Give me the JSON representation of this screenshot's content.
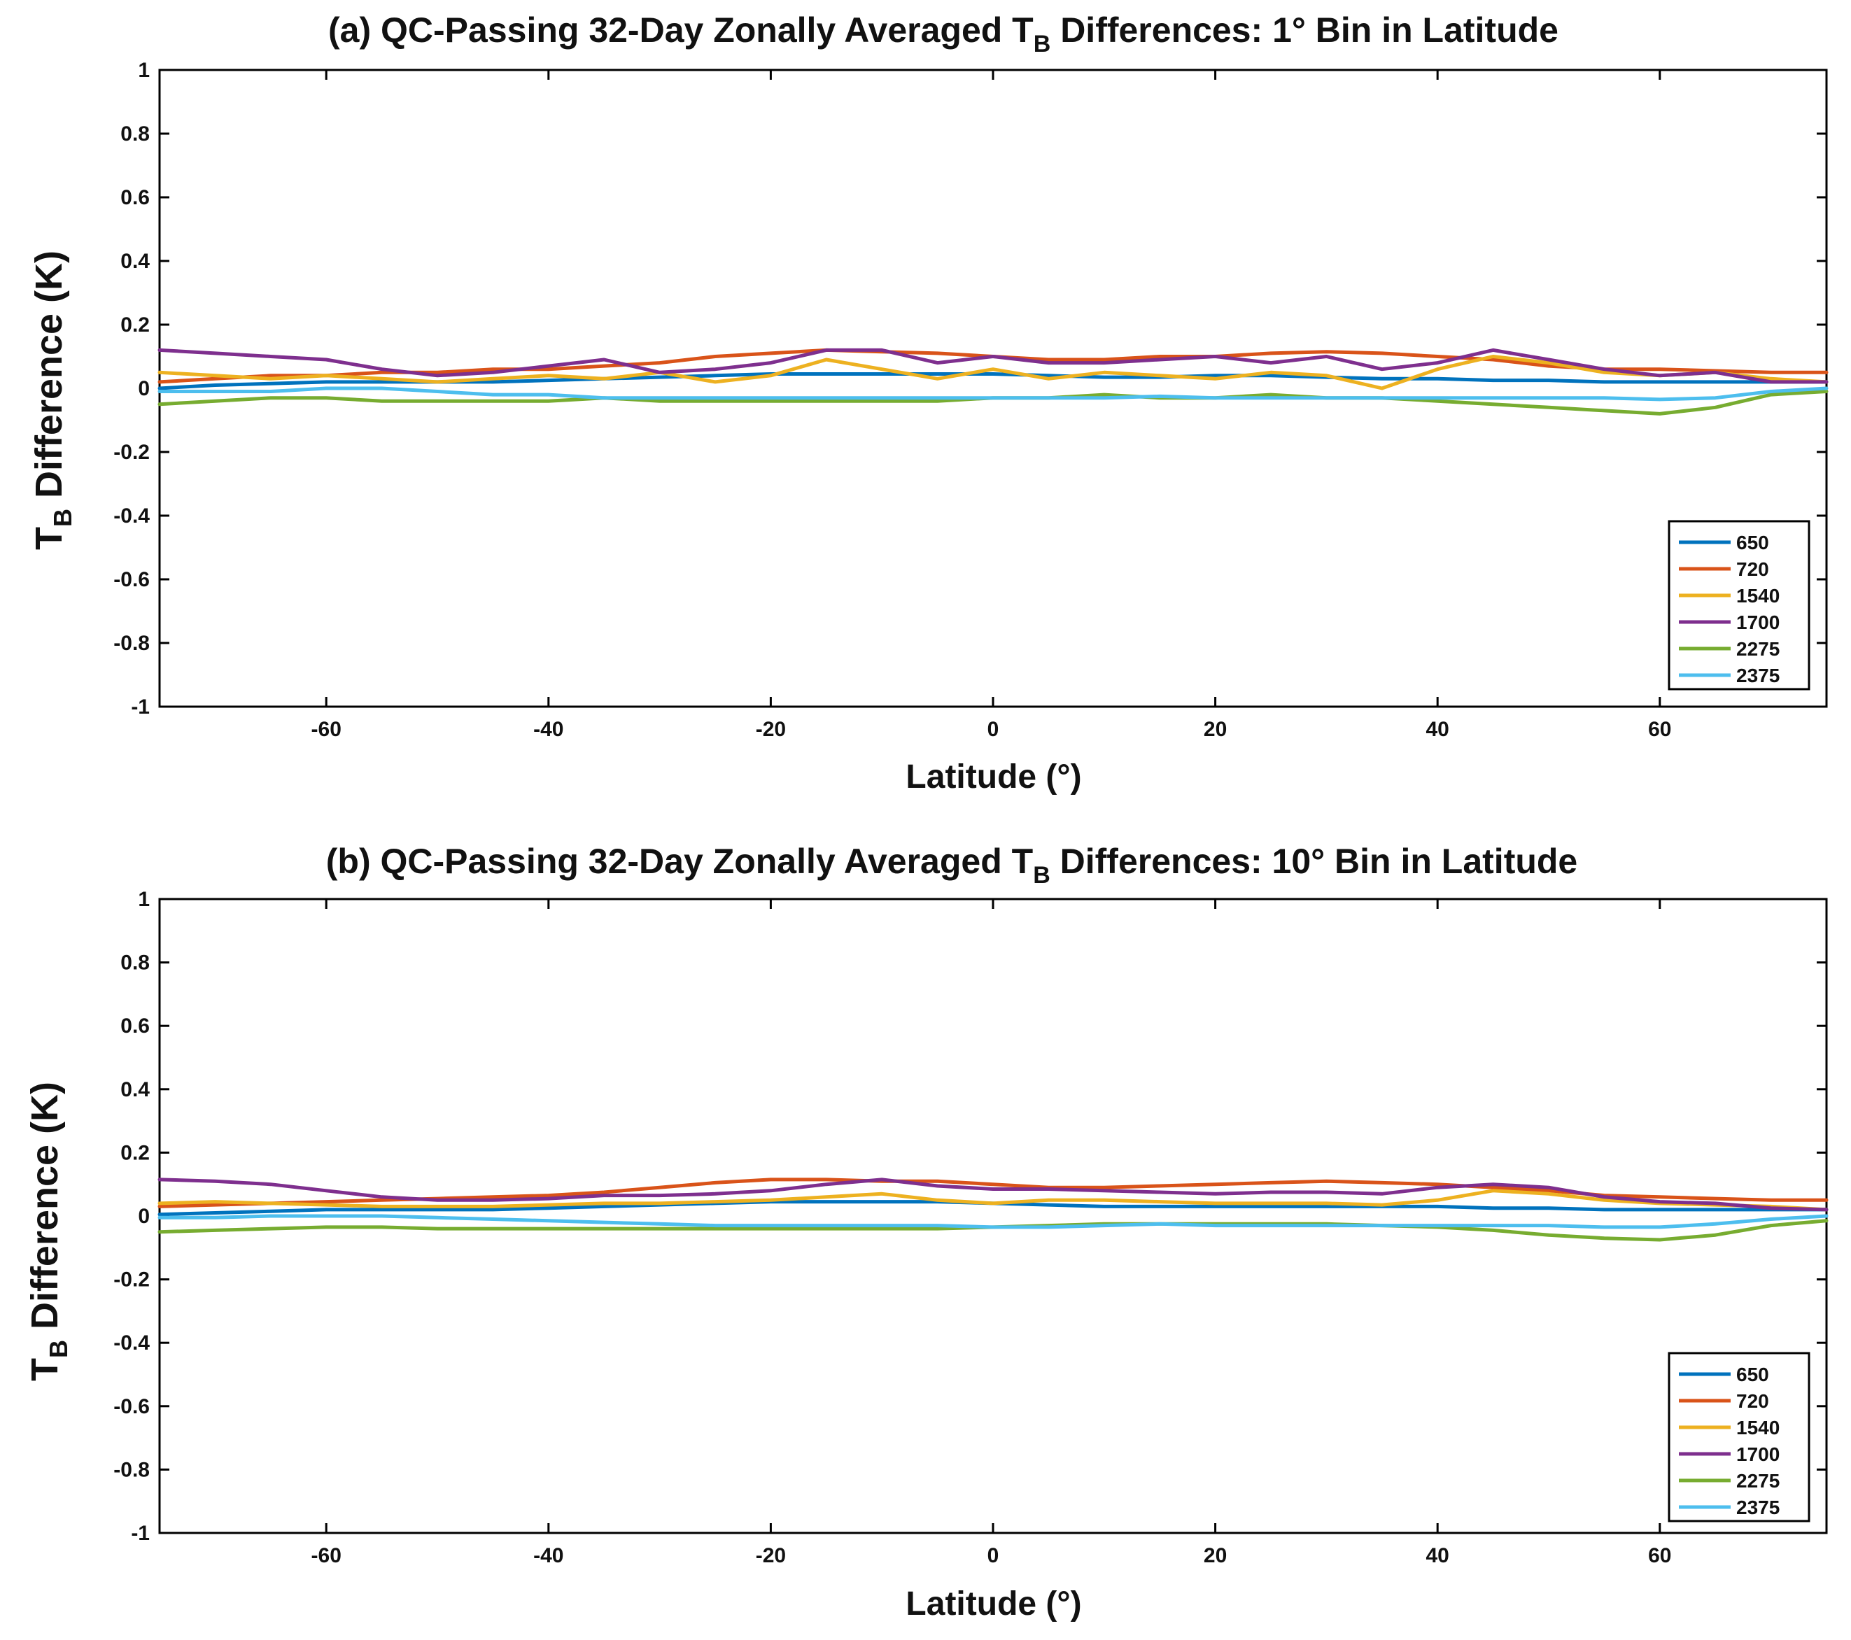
{
  "chart_data": [
    {
      "type": "line",
      "panel": "a",
      "title_main": "(a) QC-Passing 32-Day Zonally Averaged T",
      "title_sub": "B",
      "title_rest": " Differences: 1° Bin in Latitude",
      "ylabel_main": "T",
      "ylabel_sub": "B",
      "ylabel_rest": " Difference (K)",
      "xlabel": "Latitude (°)",
      "xlim": [
        -75,
        75
      ],
      "ylim": [
        -1,
        1
      ],
      "xticks": [
        -60,
        -40,
        -20,
        0,
        20,
        40,
        60
      ],
      "xtick_labels": [
        "-60",
        "-40",
        "-20",
        "0",
        "20",
        "40",
        "60"
      ],
      "yticks": [
        1,
        0.8,
        0.6,
        0.4,
        0.2,
        0,
        -0.2,
        -0.4,
        -0.6,
        -0.8,
        -1
      ],
      "ytick_labels": [
        "1",
        "0.8",
        "0.6",
        "0.4",
        "0.2",
        "0",
        "-0.2",
        "-0.4",
        "-0.6",
        "-0.8",
        "-1"
      ],
      "legend_position": "lower-right",
      "x": [
        -75,
        -70,
        -65,
        -60,
        -55,
        -50,
        -45,
        -40,
        -35,
        -30,
        -25,
        -20,
        -15,
        -10,
        -5,
        0,
        5,
        10,
        15,
        20,
        25,
        30,
        35,
        40,
        45,
        50,
        55,
        60,
        65,
        70,
        75
      ],
      "series": [
        {
          "name": "650",
          "color": "#0072BD",
          "values": [
            0.0,
            0.01,
            0.015,
            0.02,
            0.02,
            0.02,
            0.02,
            0.025,
            0.03,
            0.035,
            0.04,
            0.045,
            0.045,
            0.045,
            0.045,
            0.045,
            0.04,
            0.035,
            0.035,
            0.04,
            0.04,
            0.035,
            0.03,
            0.03,
            0.025,
            0.025,
            0.02,
            0.02,
            0.02,
            0.02,
            0.02
          ]
        },
        {
          "name": "720",
          "color": "#D95319",
          "values": [
            0.02,
            0.03,
            0.04,
            0.04,
            0.05,
            0.05,
            0.06,
            0.06,
            0.07,
            0.08,
            0.1,
            0.11,
            0.12,
            0.115,
            0.11,
            0.1,
            0.09,
            0.09,
            0.1,
            0.1,
            0.11,
            0.115,
            0.11,
            0.1,
            0.09,
            0.07,
            0.06,
            0.06,
            0.055,
            0.05,
            0.05
          ]
        },
        {
          "name": "1540",
          "color": "#EDB120",
          "values": [
            0.05,
            0.04,
            0.03,
            0.04,
            0.03,
            0.02,
            0.03,
            0.04,
            0.03,
            0.05,
            0.02,
            0.04,
            0.09,
            0.06,
            0.03,
            0.06,
            0.03,
            0.05,
            0.04,
            0.03,
            0.05,
            0.04,
            0.0,
            0.06,
            0.1,
            0.08,
            0.05,
            0.04,
            0.05,
            0.03,
            0.02
          ]
        },
        {
          "name": "1700",
          "color": "#7E2F8E",
          "values": [
            0.12,
            0.11,
            0.1,
            0.09,
            0.06,
            0.04,
            0.05,
            0.07,
            0.09,
            0.05,
            0.06,
            0.08,
            0.12,
            0.12,
            0.08,
            0.1,
            0.08,
            0.08,
            0.09,
            0.1,
            0.08,
            0.1,
            0.06,
            0.08,
            0.12,
            0.09,
            0.06,
            0.04,
            0.05,
            0.02,
            0.02
          ]
        },
        {
          "name": "2275",
          "color": "#77AC30",
          "values": [
            -0.05,
            -0.04,
            -0.03,
            -0.03,
            -0.04,
            -0.04,
            -0.04,
            -0.04,
            -0.03,
            -0.04,
            -0.04,
            -0.04,
            -0.04,
            -0.04,
            -0.04,
            -0.03,
            -0.03,
            -0.02,
            -0.03,
            -0.03,
            -0.02,
            -0.03,
            -0.03,
            -0.04,
            -0.05,
            -0.06,
            -0.07,
            -0.08,
            -0.06,
            -0.02,
            -0.01
          ]
        },
        {
          "name": "2375",
          "color": "#4DBEEE",
          "values": [
            -0.01,
            -0.01,
            -0.01,
            0.0,
            0.0,
            -0.01,
            -0.02,
            -0.02,
            -0.03,
            -0.03,
            -0.03,
            -0.03,
            -0.03,
            -0.03,
            -0.03,
            -0.03,
            -0.03,
            -0.03,
            -0.025,
            -0.03,
            -0.03,
            -0.03,
            -0.03,
            -0.03,
            -0.03,
            -0.03,
            -0.03,
            -0.035,
            -0.03,
            -0.01,
            0.0
          ]
        }
      ]
    },
    {
      "type": "line",
      "panel": "b",
      "title_main": "(b) QC-Passing 32-Day Zonally Averaged T",
      "title_sub": "B",
      "title_rest": " Differences: 10° Bin in Latitude",
      "ylabel_main": "T",
      "ylabel_sub": "B",
      "ylabel_rest": " Difference (K)",
      "xlabel": "Latitude (°)",
      "xlim": [
        -75,
        75
      ],
      "ylim": [
        -1,
        1
      ],
      "xticks": [
        -60,
        -40,
        -20,
        0,
        20,
        40,
        60
      ],
      "xtick_labels": [
        "-60",
        "-40",
        "-20",
        "0",
        "20",
        "40",
        "60"
      ],
      "yticks": [
        1,
        0.8,
        0.6,
        0.4,
        0.2,
        0,
        -0.2,
        -0.4,
        -0.6,
        -0.8,
        -1
      ],
      "ytick_labels": [
        "1",
        "0.8",
        "0.6",
        "0.4",
        "0.2",
        "0",
        "-0.2",
        "-0.4",
        "-0.6",
        "-0.8",
        "-1"
      ],
      "legend_position": "lower-right",
      "x": [
        -75,
        -70,
        -65,
        -60,
        -55,
        -50,
        -45,
        -40,
        -35,
        -30,
        -25,
        -20,
        -15,
        -10,
        -5,
        0,
        5,
        10,
        15,
        20,
        25,
        30,
        35,
        40,
        45,
        50,
        55,
        60,
        65,
        70,
        75
      ],
      "series": [
        {
          "name": "650",
          "color": "#0072BD",
          "values": [
            0.005,
            0.01,
            0.015,
            0.02,
            0.02,
            0.02,
            0.02,
            0.025,
            0.03,
            0.035,
            0.04,
            0.045,
            0.045,
            0.045,
            0.045,
            0.04,
            0.035,
            0.03,
            0.03,
            0.03,
            0.03,
            0.03,
            0.03,
            0.03,
            0.025,
            0.025,
            0.02,
            0.02,
            0.02,
            0.02,
            0.02
          ]
        },
        {
          "name": "720",
          "color": "#D95319",
          "values": [
            0.03,
            0.035,
            0.04,
            0.045,
            0.05,
            0.055,
            0.06,
            0.065,
            0.075,
            0.09,
            0.105,
            0.115,
            0.115,
            0.11,
            0.11,
            0.1,
            0.09,
            0.09,
            0.095,
            0.1,
            0.105,
            0.11,
            0.105,
            0.1,
            0.09,
            0.08,
            0.065,
            0.06,
            0.055,
            0.05,
            0.05
          ]
        },
        {
          "name": "1540",
          "color": "#EDB120",
          "values": [
            0.04,
            0.045,
            0.04,
            0.035,
            0.03,
            0.03,
            0.03,
            0.035,
            0.04,
            0.04,
            0.045,
            0.05,
            0.06,
            0.07,
            0.05,
            0.04,
            0.05,
            0.05,
            0.045,
            0.04,
            0.04,
            0.04,
            0.035,
            0.05,
            0.08,
            0.07,
            0.05,
            0.04,
            0.035,
            0.03,
            0.02
          ]
        },
        {
          "name": "1700",
          "color": "#7E2F8E",
          "values": [
            0.115,
            0.11,
            0.1,
            0.08,
            0.06,
            0.05,
            0.05,
            0.055,
            0.065,
            0.065,
            0.07,
            0.08,
            0.1,
            0.115,
            0.095,
            0.085,
            0.085,
            0.08,
            0.075,
            0.07,
            0.075,
            0.075,
            0.07,
            0.09,
            0.1,
            0.09,
            0.06,
            0.045,
            0.04,
            0.025,
            0.02
          ]
        },
        {
          "name": "2275",
          "color": "#77AC30",
          "values": [
            -0.05,
            -0.045,
            -0.04,
            -0.035,
            -0.035,
            -0.04,
            -0.04,
            -0.04,
            -0.04,
            -0.04,
            -0.04,
            -0.04,
            -0.04,
            -0.04,
            -0.04,
            -0.035,
            -0.03,
            -0.025,
            -0.025,
            -0.025,
            -0.025,
            -0.025,
            -0.03,
            -0.035,
            -0.045,
            -0.06,
            -0.07,
            -0.075,
            -0.06,
            -0.03,
            -0.015
          ]
        },
        {
          "name": "2375",
          "color": "#4DBEEE",
          "values": [
            -0.005,
            -0.005,
            0.0,
            0.0,
            0.0,
            -0.005,
            -0.01,
            -0.015,
            -0.02,
            -0.025,
            -0.03,
            -0.03,
            -0.03,
            -0.03,
            -0.03,
            -0.035,
            -0.035,
            -0.03,
            -0.025,
            -0.03,
            -0.03,
            -0.03,
            -0.03,
            -0.03,
            -0.03,
            -0.03,
            -0.035,
            -0.035,
            -0.025,
            -0.01,
            0.0
          ]
        }
      ]
    }
  ]
}
